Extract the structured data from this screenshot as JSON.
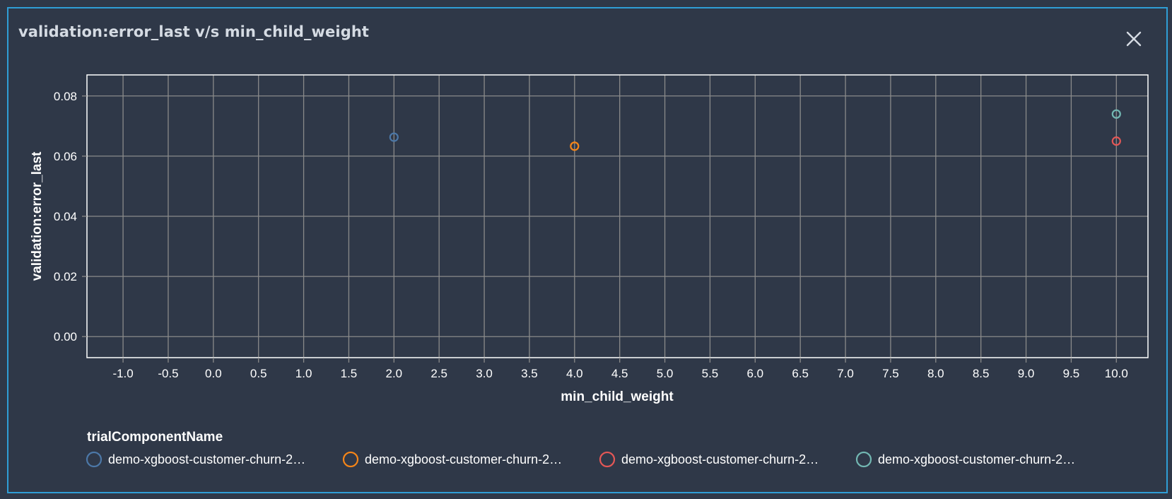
{
  "dialog": {
    "title": "validation:error_last v/s min_child_weight",
    "close_icon": "close-icon"
  },
  "colors": {
    "background": "#2f3848",
    "dialog_border": "#2f9ed6",
    "grid": "#8a8a8a",
    "axis": "#ffffff",
    "text": "#ffffff"
  },
  "chart_data": {
    "type": "scatter",
    "xlabel": "min_child_weight",
    "ylabel": "validation:error_last",
    "xlim": [
      -1.4,
      10.35
    ],
    "ylim": [
      -0.007,
      0.087
    ],
    "x_ticks": [
      -1.0,
      -0.5,
      0.0,
      0.5,
      1.0,
      1.5,
      2.0,
      2.5,
      3.0,
      3.5,
      4.0,
      4.5,
      5.0,
      5.5,
      6.0,
      6.5,
      7.0,
      7.5,
      8.0,
      8.5,
      9.0,
      9.5,
      10.0
    ],
    "x_tick_labels": [
      "-1.0",
      "-0.5",
      "0.0",
      "0.5",
      "1.0",
      "1.5",
      "2.0",
      "2.5",
      "3.0",
      "3.5",
      "4.0",
      "4.5",
      "5.0",
      "5.5",
      "6.0",
      "6.5",
      "7.0",
      "7.5",
      "8.0",
      "8.5",
      "9.0",
      "9.5",
      "10.0"
    ],
    "y_ticks": [
      0.0,
      0.02,
      0.04,
      0.06,
      0.08
    ],
    "y_tick_labels": [
      "0.00",
      "0.02",
      "0.04",
      "0.06",
      "0.08"
    ],
    "grid": true,
    "legend": {
      "title": "trialComponentName",
      "placement": "bottom-left"
    },
    "series": [
      {
        "name": "demo-xgboost-customer-churn-2…",
        "color": "#4c78a8",
        "x": [
          2.0
        ],
        "y": [
          0.0663
        ]
      },
      {
        "name": "demo-xgboost-customer-churn-2…",
        "color": "#f58518",
        "x": [
          4.0
        ],
        "y": [
          0.0633
        ]
      },
      {
        "name": "demo-xgboost-customer-churn-2…",
        "color": "#e45756",
        "x": [
          10.0
        ],
        "y": [
          0.065
        ]
      },
      {
        "name": "demo-xgboost-customer-churn-2…",
        "color": "#72b7b2",
        "x": [
          10.0
        ],
        "y": [
          0.074
        ]
      }
    ]
  }
}
